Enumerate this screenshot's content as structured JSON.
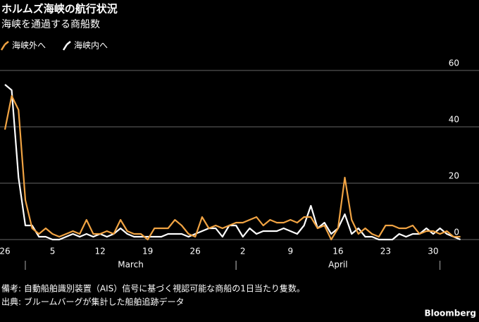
{
  "chart_data": {
    "type": "line",
    "title": "ホルムズ海峡の航行状況",
    "subtitle": "海峡を通過する商船数",
    "categories": [
      "26",
      null,
      null,
      null,
      null,
      null,
      null,
      "5",
      null,
      null,
      null,
      null,
      null,
      null,
      "12",
      null,
      null,
      null,
      null,
      null,
      null,
      "19",
      null,
      null,
      null,
      null,
      null,
      null,
      "26",
      null,
      null,
      null,
      null,
      null,
      null,
      "2",
      null,
      null,
      null,
      null,
      null,
      null,
      "9",
      null,
      null,
      null,
      null,
      null,
      null,
      "16",
      null,
      null,
      null,
      null,
      null,
      null,
      "23",
      null,
      null,
      null,
      null,
      null,
      null,
      "30",
      null,
      null,
      null,
      null
    ],
    "months": [
      {
        "label": "March",
        "start": 3,
        "end": 34
      },
      {
        "label": "April",
        "start": 34,
        "end": 64
      }
    ],
    "series": [
      {
        "name": "海峡外へ",
        "color": "#f0a343",
        "values": [
          39,
          51,
          46,
          14,
          4,
          2,
          4,
          2,
          1,
          2,
          3,
          2,
          7,
          2,
          2,
          3,
          2,
          7,
          3,
          2,
          2,
          0,
          4,
          4,
          4,
          7,
          5,
          2,
          1,
          8,
          4,
          5,
          4,
          5,
          6,
          6,
          7,
          8,
          5,
          7,
          6,
          6,
          7,
          6,
          8,
          8,
          4,
          5,
          0,
          4,
          22,
          7,
          2,
          4,
          2,
          1,
          5,
          5,
          4,
          4,
          5,
          2,
          3,
          3,
          2,
          3,
          1,
          1
        ]
      },
      {
        "name": "海峡内へ",
        "color": "#ffffff",
        "values": [
          55,
          53,
          22,
          5,
          5,
          1,
          1,
          0,
          0,
          1,
          2,
          1,
          2,
          1,
          2,
          1,
          2,
          4,
          2,
          1,
          1,
          1,
          1,
          1,
          2,
          2,
          2,
          1,
          2,
          3,
          4,
          4,
          1,
          5,
          5,
          1,
          4,
          2,
          3,
          3,
          3,
          4,
          3,
          2,
          5,
          12,
          4,
          6,
          2,
          4,
          9,
          2,
          4,
          1,
          1,
          0,
          0,
          0,
          2,
          1,
          2,
          2,
          4,
          2,
          4,
          2,
          1,
          0
        ]
      }
    ],
    "ylim": [
      0,
      60
    ],
    "yticks": [
      0,
      20,
      40,
      60
    ],
    "grid": true,
    "note": "備考: 自動船舶識別装置（AIS）信号に基づく視認可能な商船の1日当たり隻数。",
    "source": "出典: ブルームバーグが集計した船舶追跡データ",
    "brand": "Bloomberg"
  }
}
